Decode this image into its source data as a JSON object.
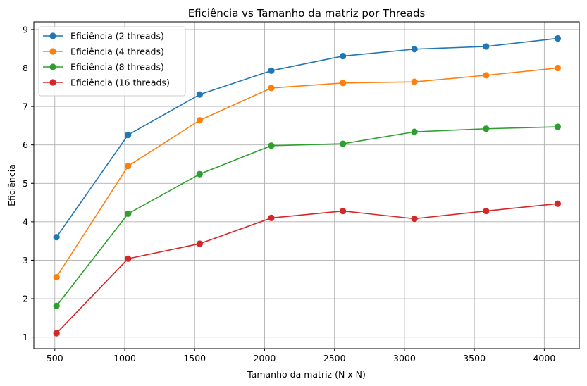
{
  "chart_data": {
    "type": "line",
    "title": "Eficiência vs Tamanho da matriz por Threads",
    "xlabel": "Tamanho da matriz (N x N)",
    "ylabel": "Eficiência",
    "x": [
      512,
      1024,
      1536,
      2048,
      2560,
      3072,
      3584,
      4096
    ],
    "xlim": [
      350,
      4250
    ],
    "ylim": [
      0.7,
      9.2
    ],
    "xticks": [
      500,
      1000,
      1500,
      2000,
      2500,
      3000,
      3500,
      4000
    ],
    "yticks": [
      1,
      2,
      3,
      4,
      5,
      6,
      7,
      8,
      9
    ],
    "grid": true,
    "legend_position": "top-left",
    "series": [
      {
        "name": "Eficiência (2 threads)",
        "color": "#1f77b4",
        "values": [
          3.6,
          6.26,
          7.31,
          7.93,
          8.31,
          8.49,
          8.56,
          8.77
        ]
      },
      {
        "name": "Eficiência (4 threads)",
        "color": "#ff7f0e",
        "values": [
          2.56,
          5.45,
          6.64,
          7.48,
          7.61,
          7.64,
          7.81,
          8.0
        ]
      },
      {
        "name": "Eficiência (8 threads)",
        "color": "#2ca02c",
        "values": [
          1.81,
          4.21,
          5.24,
          5.98,
          6.03,
          6.34,
          6.42,
          6.47
        ]
      },
      {
        "name": "Eficiência (16 threads)",
        "color": "#d62728",
        "values": [
          1.1,
          3.04,
          3.43,
          4.1,
          4.28,
          4.08,
          4.28,
          4.47
        ]
      }
    ]
  }
}
